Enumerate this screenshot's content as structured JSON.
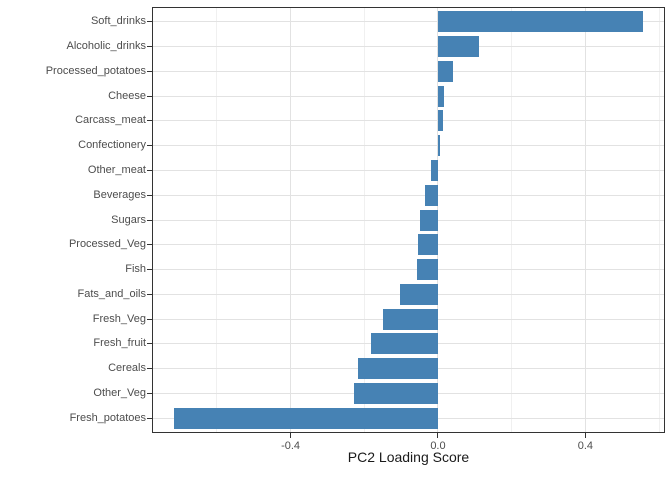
{
  "chart_data": {
    "type": "bar",
    "orientation": "horizontal",
    "title": "",
    "xlabel": "PC2 Loading Score",
    "ylabel": "",
    "legend": "none",
    "grid": "on",
    "sorted": "descending_top_to_bottom",
    "categories": [
      "Soft_drinks",
      "Alcoholic_drinks",
      "Processed_potatoes",
      "Cheese",
      "Carcass_meat",
      "Confectionery",
      "Other_meat",
      "Beverages",
      "Sugars",
      "Processed_Veg",
      "Fish",
      "Fats_and_oils",
      "Fresh_Veg",
      "Fresh_fruit",
      "Cereals",
      "Other_Veg",
      "Fresh_potatoes"
    ],
    "values": [
      0.555,
      0.112,
      0.04,
      0.016,
      0.015,
      0.005,
      -0.018,
      -0.036,
      -0.049,
      -0.053,
      -0.056,
      -0.102,
      -0.149,
      -0.183,
      -0.216,
      -0.228,
      -0.716
    ],
    "xlim": [
      -0.776,
      0.616
    ],
    "x_ticks": [
      {
        "value": -0.4,
        "label": "-0.4"
      },
      {
        "value": 0.0,
        "label": "0.0"
      },
      {
        "value": 0.4,
        "label": "0.4"
      }
    ],
    "x_minor_gridlines": [
      -0.6,
      -0.2,
      0.2,
      0.6
    ]
  },
  "style": {
    "bar_color": "#4682B4",
    "panel_border_color": "#333333",
    "major_grid_color": "#E2E2E2",
    "minor_grid_color": "#F0F0F0",
    "tick_mark_color": "#333333",
    "axis_text_color": "#4D4D4D",
    "axis_title_color": "#1A1A1A",
    "background": "#FFFFFF"
  }
}
